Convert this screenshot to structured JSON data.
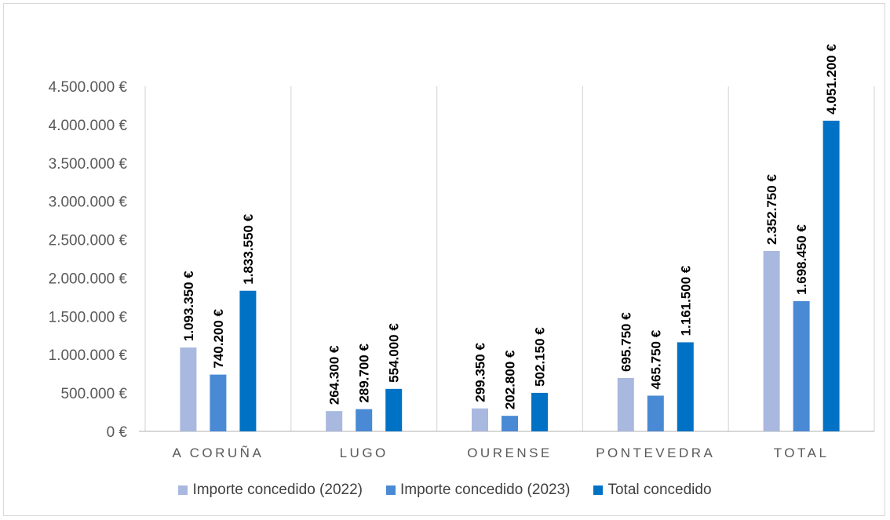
{
  "chart_data": {
    "type": "bar",
    "categories": [
      "A CORUÑA",
      "LUGO",
      "OURENSE",
      "PONTEVEDRA",
      "TOTAL"
    ],
    "series": [
      {
        "name": "Importe concedido (2022)",
        "color": "#a9b8df",
        "values": [
          1093350,
          264300,
          299350,
          695750,
          2352750
        ],
        "labels": [
          "1.093.350 €",
          "264.300 €",
          "299.350 €",
          "695.750 €",
          "2.352.750 €"
        ]
      },
      {
        "name": "Importe concedido (2023)",
        "color": "#4a8ad4",
        "values": [
          740200,
          289700,
          202800,
          465750,
          1698450
        ],
        "labels": [
          "740.200 €",
          "289.700 €",
          "202.800 €",
          "465.750 €",
          "1.698.450 €"
        ]
      },
      {
        "name": "Total concedido",
        "color": "#0072c6",
        "values": [
          1833550,
          554000,
          502150,
          1161500,
          4051200
        ],
        "labels": [
          "1.833.550 €",
          "554.000 €",
          "502.150 €",
          "1.161.500 €",
          "4.051.200 €"
        ]
      }
    ],
    "yticks": [
      0,
      500000,
      1000000,
      1500000,
      2000000,
      2500000,
      3000000,
      3500000,
      4000000,
      4500000
    ],
    "ytick_labels": [
      "0 €",
      "500.000 €",
      "1.000.000 €",
      "1.500.000 €",
      "2.000.000 €",
      "2.500.000 €",
      "3.000.000 €",
      "3.500.000 €",
      "4.000.000 €",
      "4.500.000 €"
    ],
    "ylim": [
      0,
      4500000
    ],
    "grid": "vertical category separators",
    "legend_position": "bottom"
  }
}
